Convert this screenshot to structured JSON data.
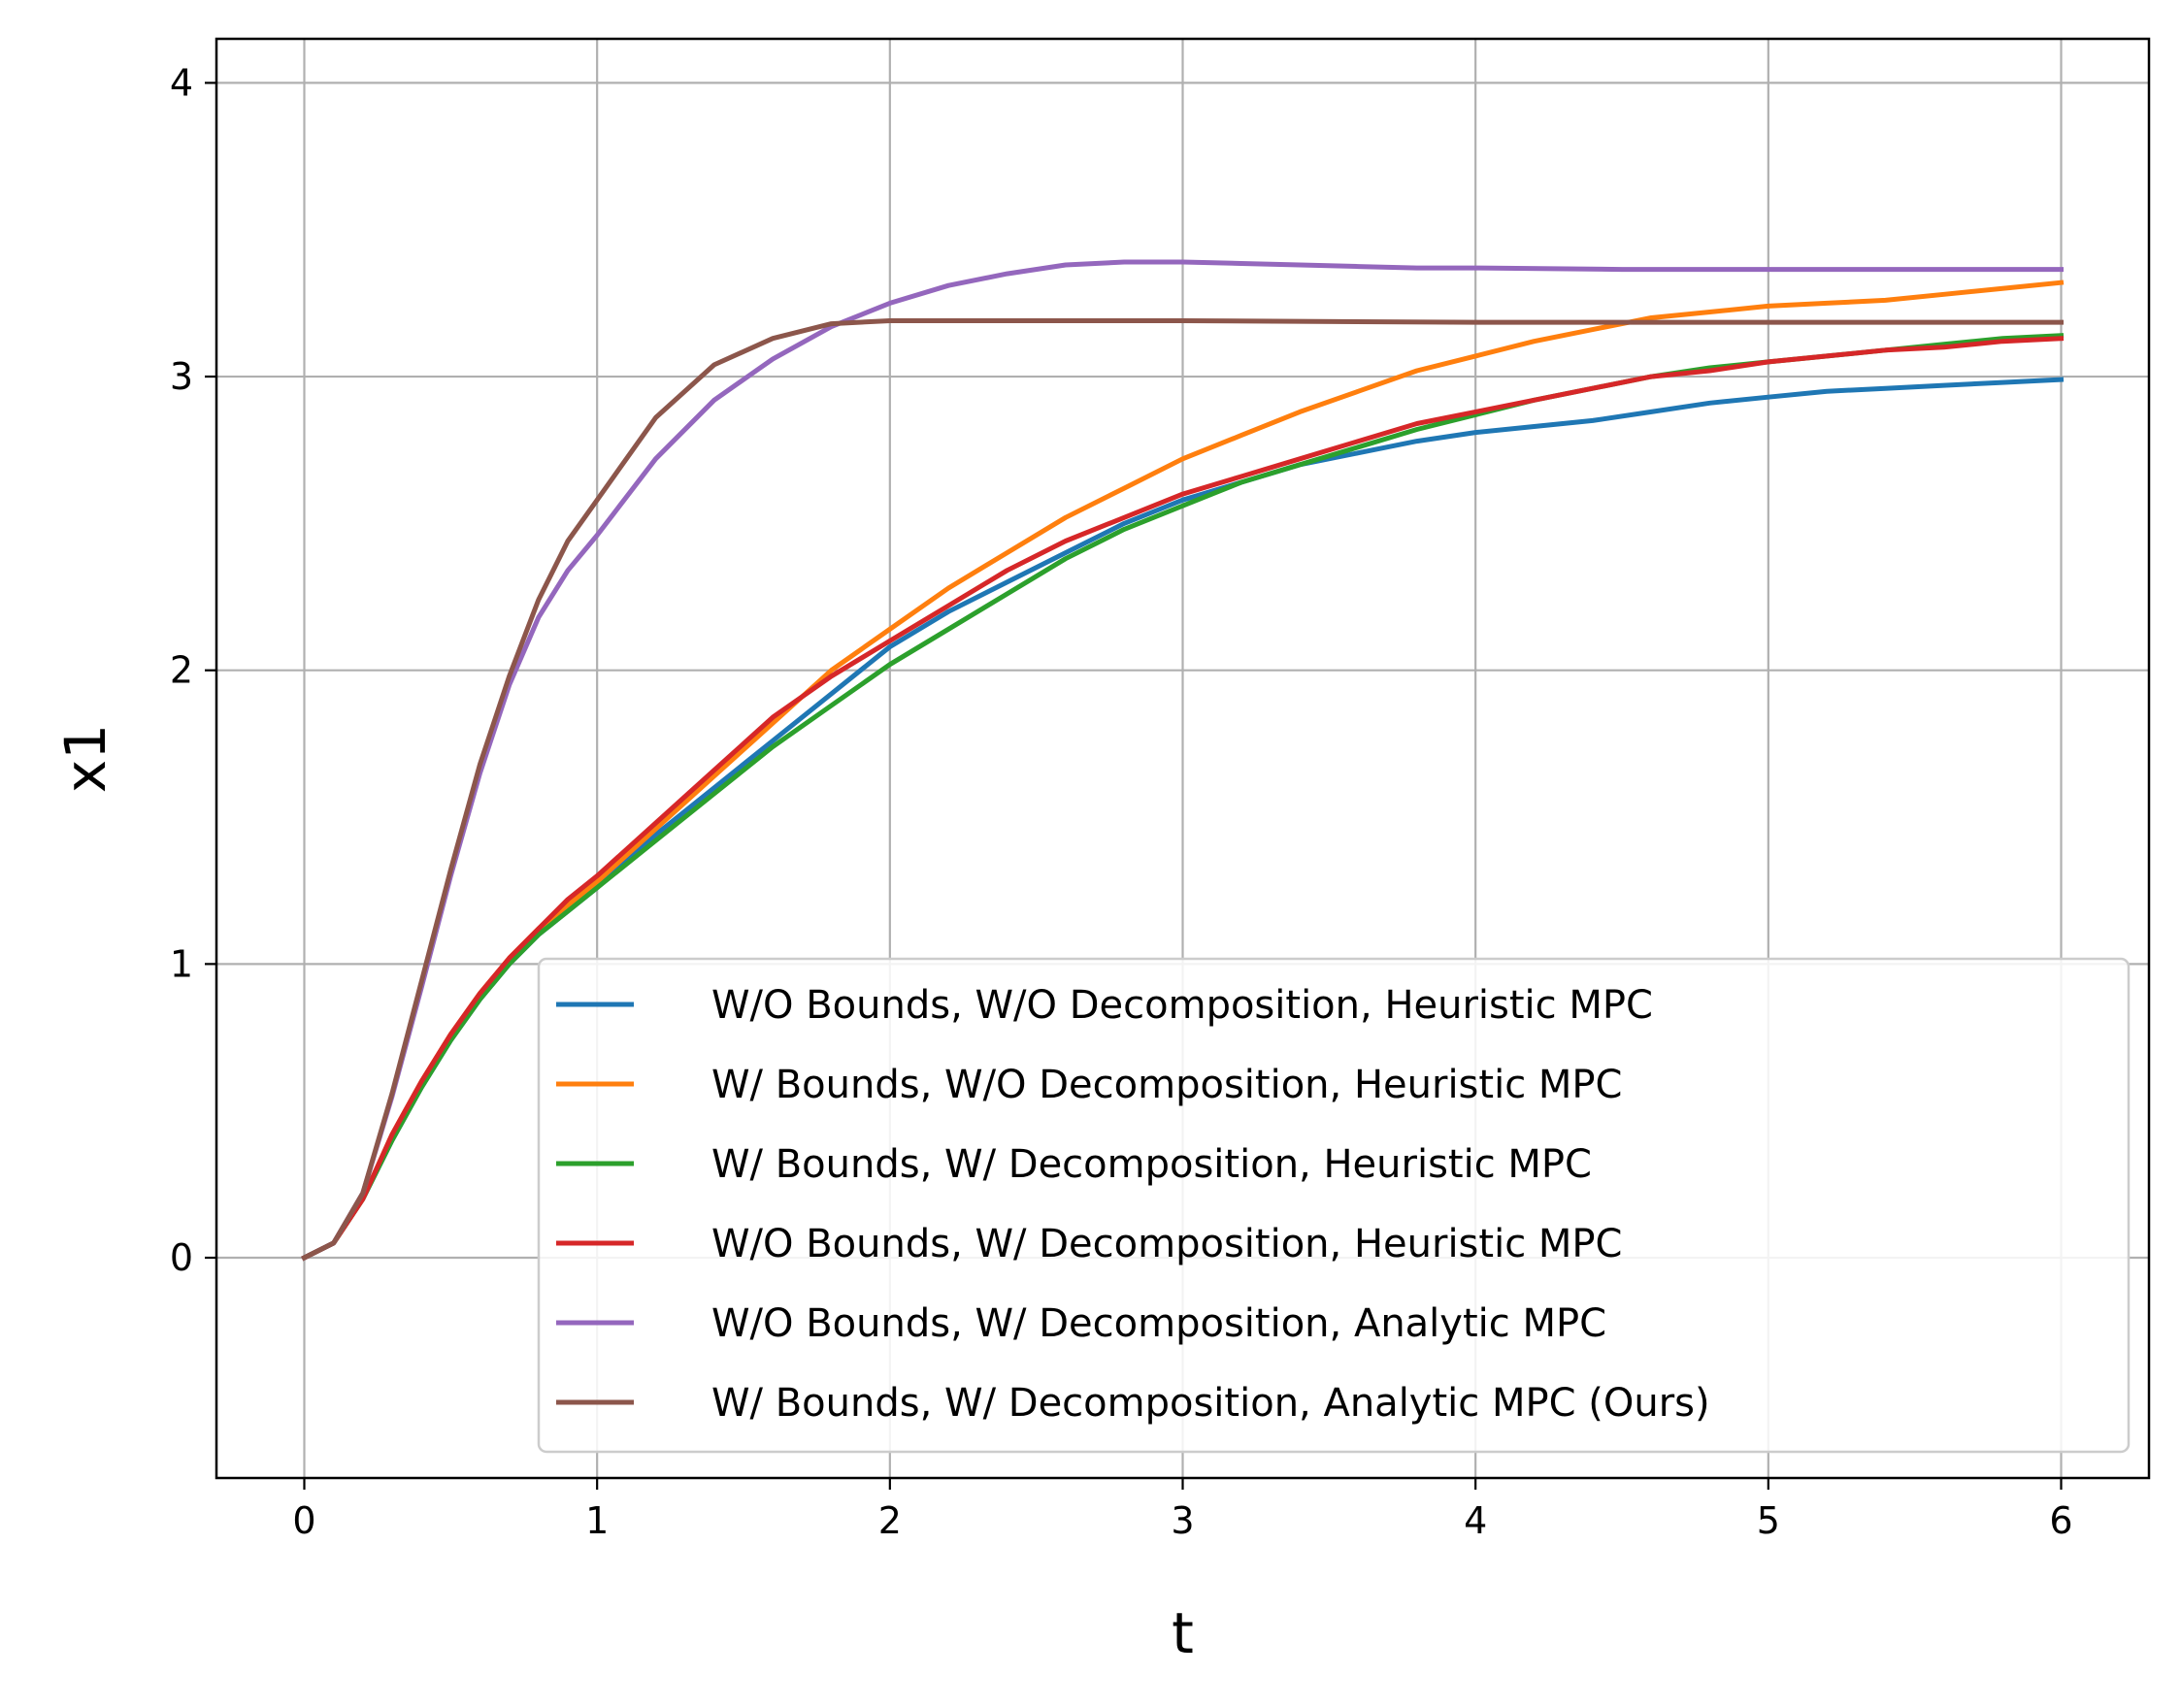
{
  "chart_data": {
    "type": "line",
    "title": "",
    "xlabel": "t",
    "ylabel": "x1",
    "xlim": [
      -0.3,
      6.3
    ],
    "ylim": [
      -0.75,
      4.15
    ],
    "xticks": [
      0,
      1,
      2,
      3,
      4,
      5,
      6
    ],
    "yticks": [
      0,
      1,
      2,
      3,
      4
    ],
    "xtick_labels": [
      "0",
      "1",
      "2",
      "3",
      "4",
      "5",
      "6"
    ],
    "ytick_labels": [
      "0",
      "1",
      "2",
      "3",
      "4"
    ],
    "grid": true,
    "legend_position": "lower-right",
    "series": [
      {
        "name": "W/O Bounds, W/O Decomposition, Heuristic MPC",
        "color": "#1f77b4",
        "x": [
          0,
          0.1,
          0.2,
          0.3,
          0.4,
          0.5,
          0.6,
          0.7,
          0.8,
          0.9,
          1.0,
          1.2,
          1.4,
          1.6,
          1.8,
          2.0,
          2.2,
          2.4,
          2.6,
          2.8,
          3.0,
          3.2,
          3.4,
          3.6,
          3.8,
          4.0,
          4.2,
          4.4,
          4.6,
          4.8,
          5.0,
          5.2,
          5.4,
          5.6,
          5.8,
          6.0
        ],
        "y": [
          0,
          0.05,
          0.2,
          0.4,
          0.58,
          0.74,
          0.88,
          1.0,
          1.1,
          1.18,
          1.26,
          1.44,
          1.6,
          1.76,
          1.92,
          2.08,
          2.2,
          2.3,
          2.4,
          2.5,
          2.58,
          2.64,
          2.7,
          2.74,
          2.78,
          2.81,
          2.83,
          2.85,
          2.88,
          2.91,
          2.93,
          2.95,
          2.96,
          2.97,
          2.98,
          2.99
        ]
      },
      {
        "name": "W/ Bounds, W/O Decomposition, Heuristic MPC",
        "color": "#ff7f0e",
        "x": [
          0,
          0.1,
          0.2,
          0.3,
          0.4,
          0.5,
          0.6,
          0.7,
          0.8,
          0.9,
          1.0,
          1.2,
          1.4,
          1.6,
          1.8,
          2.0,
          2.2,
          2.4,
          2.6,
          2.8,
          3.0,
          3.2,
          3.4,
          3.6,
          3.8,
          4.0,
          4.2,
          4.4,
          4.6,
          4.8,
          5.0,
          5.2,
          5.4,
          5.6,
          5.8,
          6.0
        ],
        "y": [
          0,
          0.05,
          0.2,
          0.42,
          0.6,
          0.76,
          0.9,
          1.02,
          1.12,
          1.2,
          1.28,
          1.46,
          1.64,
          1.82,
          2.0,
          2.14,
          2.28,
          2.4,
          2.52,
          2.62,
          2.72,
          2.8,
          2.88,
          2.95,
          3.02,
          3.07,
          3.12,
          3.16,
          3.2,
          3.22,
          3.24,
          3.25,
          3.26,
          3.28,
          3.3,
          3.32
        ]
      },
      {
        "name": "W/ Bounds, W/ Decomposition, Heuristic MPC",
        "color": "#2ca02c",
        "x": [
          0,
          0.1,
          0.2,
          0.3,
          0.4,
          0.5,
          0.6,
          0.7,
          0.8,
          0.9,
          1.0,
          1.2,
          1.4,
          1.6,
          1.8,
          2.0,
          2.2,
          2.4,
          2.6,
          2.8,
          3.0,
          3.2,
          3.4,
          3.6,
          3.8,
          4.0,
          4.2,
          4.4,
          4.6,
          4.8,
          5.0,
          5.2,
          5.4,
          5.6,
          5.8,
          6.0
        ],
        "y": [
          0,
          0.05,
          0.2,
          0.4,
          0.58,
          0.74,
          0.88,
          1.0,
          1.1,
          1.18,
          1.26,
          1.42,
          1.58,
          1.74,
          1.88,
          2.02,
          2.14,
          2.26,
          2.38,
          2.48,
          2.56,
          2.64,
          2.7,
          2.76,
          2.82,
          2.87,
          2.92,
          2.96,
          3.0,
          3.03,
          3.05,
          3.07,
          3.09,
          3.11,
          3.13,
          3.14
        ]
      },
      {
        "name": "W/O Bounds, W/ Decomposition, Heuristic MPC",
        "color": "#d62728",
        "x": [
          0,
          0.1,
          0.2,
          0.3,
          0.4,
          0.5,
          0.6,
          0.7,
          0.8,
          0.9,
          1.0,
          1.2,
          1.4,
          1.6,
          1.8,
          2.0,
          2.2,
          2.4,
          2.6,
          2.8,
          3.0,
          3.2,
          3.4,
          3.6,
          3.8,
          4.0,
          4.2,
          4.4,
          4.6,
          4.8,
          5.0,
          5.2,
          5.4,
          5.6,
          5.8,
          6.0
        ],
        "y": [
          0,
          0.05,
          0.2,
          0.42,
          0.6,
          0.76,
          0.9,
          1.02,
          1.12,
          1.22,
          1.3,
          1.48,
          1.66,
          1.84,
          1.98,
          2.1,
          2.22,
          2.34,
          2.44,
          2.52,
          2.6,
          2.66,
          2.72,
          2.78,
          2.84,
          2.88,
          2.92,
          2.96,
          3.0,
          3.02,
          3.05,
          3.07,
          3.09,
          3.1,
          3.12,
          3.13
        ]
      },
      {
        "name": "W/O Bounds, W/ Decomposition, Analytic MPC",
        "color": "#9467bd",
        "x": [
          0,
          0.1,
          0.2,
          0.3,
          0.4,
          0.5,
          0.6,
          0.7,
          0.8,
          0.9,
          1.0,
          1.2,
          1.4,
          1.6,
          1.8,
          2.0,
          2.2,
          2.4,
          2.6,
          2.8,
          3.0,
          3.2,
          3.4,
          3.6,
          3.8,
          4.0,
          4.5,
          5.0,
          5.5,
          6.0
        ],
        "y": [
          0,
          0.05,
          0.22,
          0.55,
          0.92,
          1.3,
          1.65,
          1.95,
          2.18,
          2.34,
          2.46,
          2.72,
          2.92,
          3.06,
          3.17,
          3.25,
          3.31,
          3.35,
          3.38,
          3.39,
          3.39,
          3.385,
          3.38,
          3.375,
          3.37,
          3.37,
          3.365,
          3.365,
          3.365,
          3.365
        ]
      },
      {
        "name": "W/ Bounds, W/ Decomposition, Analytic MPC (Ours)",
        "color": "#8c564b",
        "x": [
          0,
          0.1,
          0.2,
          0.3,
          0.4,
          0.5,
          0.6,
          0.7,
          0.8,
          0.9,
          1.0,
          1.2,
          1.4,
          1.6,
          1.8,
          2.0,
          2.2,
          2.5,
          3.0,
          4.0,
          5.0,
          6.0
        ],
        "y": [
          0,
          0.05,
          0.22,
          0.56,
          0.94,
          1.32,
          1.68,
          1.98,
          2.24,
          2.44,
          2.58,
          2.86,
          3.04,
          3.13,
          3.18,
          3.19,
          3.19,
          3.19,
          3.19,
          3.185,
          3.185,
          3.185
        ]
      }
    ]
  }
}
